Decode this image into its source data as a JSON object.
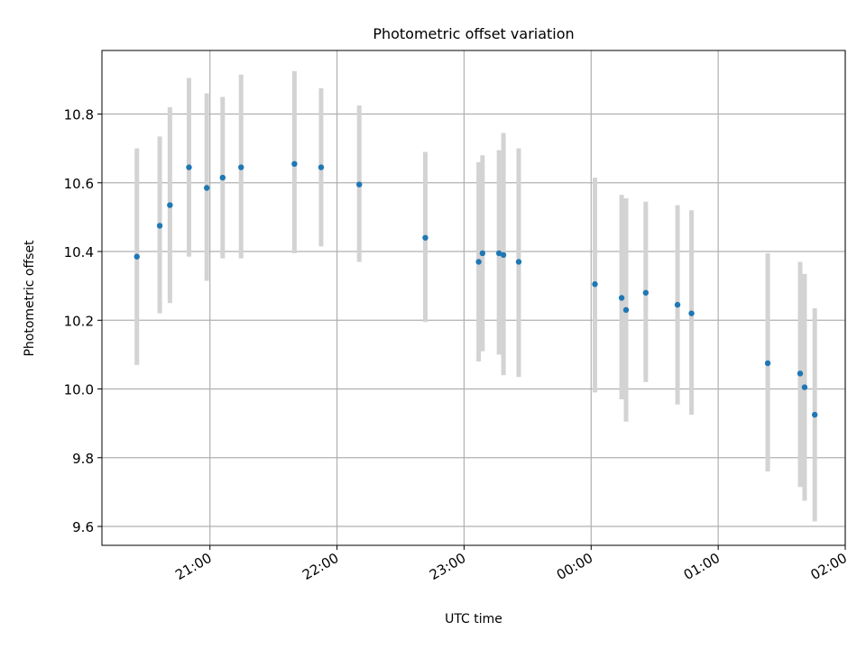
{
  "chart_data": {
    "type": "scatter",
    "title": "Photometric offset variation",
    "xlabel": "UTC time",
    "ylabel": "Photometric offset",
    "x_unit": "hours_utc",
    "xlim": [
      20.15,
      26.0
    ],
    "ylim": [
      9.545,
      10.985
    ],
    "grid": true,
    "x_ticks": [
      {
        "x": 21.0,
        "label": "21:00"
      },
      {
        "x": 22.0,
        "label": "22:00"
      },
      {
        "x": 23.0,
        "label": "23:00"
      },
      {
        "x": 24.0,
        "label": "00:00"
      },
      {
        "x": 25.0,
        "label": "01:00"
      },
      {
        "x": 26.0,
        "label": "02:00"
      }
    ],
    "y_ticks": [
      {
        "y": 9.6,
        "label": "9.6"
      },
      {
        "y": 9.8,
        "label": "9.8"
      },
      {
        "y": 10.0,
        "label": "10.0"
      },
      {
        "y": 10.2,
        "label": "10.2"
      },
      {
        "y": 10.4,
        "label": "10.4"
      },
      {
        "y": 10.6,
        "label": "10.6"
      },
      {
        "y": 10.8,
        "label": "10.8"
      }
    ],
    "colors": {
      "point": "#1f77b4",
      "errorbar": "#d3d3d3",
      "grid": "#b0b0b0",
      "axes": "#000000"
    },
    "points": [
      {
        "x": 20.425,
        "y": 10.385,
        "ylo": 10.07,
        "yhi": 10.7
      },
      {
        "x": 20.605,
        "y": 10.475,
        "ylo": 10.22,
        "yhi": 10.735
      },
      {
        "x": 20.685,
        "y": 10.535,
        "ylo": 10.25,
        "yhi": 10.82
      },
      {
        "x": 20.835,
        "y": 10.645,
        "ylo": 10.385,
        "yhi": 10.905
      },
      {
        "x": 20.975,
        "y": 10.585,
        "ylo": 10.315,
        "yhi": 10.86
      },
      {
        "x": 21.1,
        "y": 10.615,
        "ylo": 10.38,
        "yhi": 10.85
      },
      {
        "x": 21.245,
        "y": 10.645,
        "ylo": 10.38,
        "yhi": 10.915
      },
      {
        "x": 21.665,
        "y": 10.655,
        "ylo": 10.395,
        "yhi": 10.925
      },
      {
        "x": 21.875,
        "y": 10.645,
        "ylo": 10.415,
        "yhi": 10.875
      },
      {
        "x": 22.175,
        "y": 10.595,
        "ylo": 10.37,
        "yhi": 10.825
      },
      {
        "x": 22.695,
        "y": 10.44,
        "ylo": 10.195,
        "yhi": 10.69
      },
      {
        "x": 23.115,
        "y": 10.37,
        "ylo": 10.08,
        "yhi": 10.66
      },
      {
        "x": 23.145,
        "y": 10.395,
        "ylo": 10.11,
        "yhi": 10.68
      },
      {
        "x": 23.275,
        "y": 10.395,
        "ylo": 10.1,
        "yhi": 10.695
      },
      {
        "x": 23.31,
        "y": 10.39,
        "ylo": 10.04,
        "yhi": 10.745
      },
      {
        "x": 23.43,
        "y": 10.37,
        "ylo": 10.035,
        "yhi": 10.7
      },
      {
        "x": 24.03,
        "y": 10.305,
        "ylo": 9.99,
        "yhi": 10.615
      },
      {
        "x": 24.24,
        "y": 10.265,
        "ylo": 9.97,
        "yhi": 10.565
      },
      {
        "x": 24.275,
        "y": 10.23,
        "ylo": 9.905,
        "yhi": 10.555
      },
      {
        "x": 24.43,
        "y": 10.28,
        "ylo": 10.02,
        "yhi": 10.545
      },
      {
        "x": 24.68,
        "y": 10.245,
        "ylo": 9.955,
        "yhi": 10.535
      },
      {
        "x": 24.79,
        "y": 10.22,
        "ylo": 9.925,
        "yhi": 10.52
      },
      {
        "x": 25.39,
        "y": 10.075,
        "ylo": 9.76,
        "yhi": 10.395
      },
      {
        "x": 25.645,
        "y": 10.045,
        "ylo": 9.715,
        "yhi": 10.37
      },
      {
        "x": 25.68,
        "y": 10.005,
        "ylo": 9.675,
        "yhi": 10.335
      },
      {
        "x": 25.76,
        "y": 9.925,
        "ylo": 9.615,
        "yhi": 10.235
      }
    ]
  }
}
